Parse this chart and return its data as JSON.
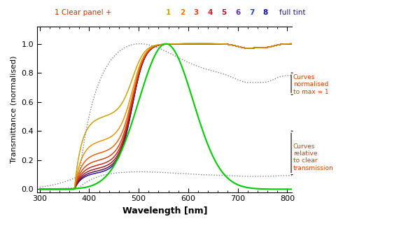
{
  "wavelength_min": 300,
  "wavelength_max": 810,
  "title": "1 Clear panel + 1 2 3 4 5 6 7 8  full tint",
  "xlabel": "Wavelength [nm]",
  "ylabel": "Transmittance (normalised)",
  "xlim": [
    295,
    810
  ],
  "ylim": [
    -0.02,
    1.12
  ],
  "yticks": [
    0.0,
    0.2,
    0.4,
    0.6,
    0.8,
    1.0
  ],
  "xticks": [
    300,
    400,
    500,
    600,
    700,
    800
  ],
  "colors_normalized": [
    "#e6b800",
    "#f5a000",
    "#f07800",
    "#e05000",
    "#cc3030",
    "#c02828",
    "#b02020",
    "#8b1a1a"
  ],
  "colors_unnorm": [
    "#d4aa00",
    "#e08800",
    "#d06000",
    "#b83030",
    "#a02020",
    "#882020",
    "#701818",
    "#3a1060"
  ],
  "legend_colors": [
    "#e6b800",
    "#f07800",
    "#cc3030",
    "#a02020",
    "#702080",
    "#404080",
    "#202090",
    "#101060"
  ],
  "annot_norm": "Curves\nnormalised\nto max = 1",
  "annot_unnorm": "Curves\nrelative\nto clear\ntransmission",
  "background_color": "#ffffff"
}
